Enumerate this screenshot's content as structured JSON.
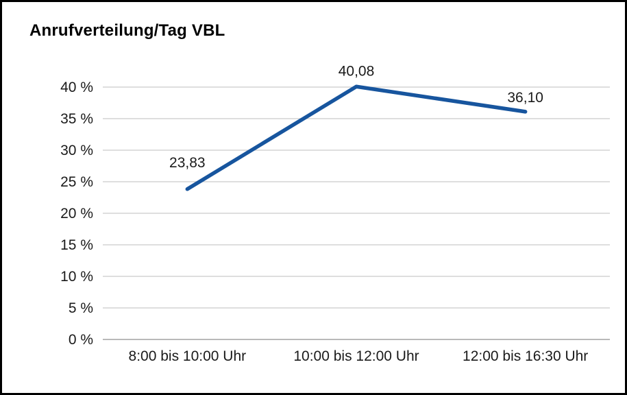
{
  "window": {
    "background": "#ffffff",
    "border_color": "#000000"
  },
  "chart_data": {
    "type": "line",
    "title": "Anrufverteilung/Tag VBL",
    "categories": [
      "8:00 bis 10:00 Uhr",
      "10:00 bis 12:00 Uhr",
      "12:00 bis 16:30 Uhr"
    ],
    "values": [
      23.83,
      40.08,
      36.1
    ],
    "value_labels": [
      "23,83",
      "40,08",
      "36,10"
    ],
    "xlabel": "",
    "ylabel": "",
    "ylim": [
      0,
      40
    ],
    "ytick_step": 5,
    "ytick_labels": [
      "0 %",
      "5 %",
      "10 %",
      "15 %",
      "20 %",
      "25 %",
      "30 %",
      "35 %",
      "40 %"
    ],
    "grid": true,
    "legend": "none",
    "line_color": "#17559e",
    "grid_color": "#c9c9c9",
    "axis_color": "#8f8f8f",
    "text_color": "#1a1a1a"
  }
}
